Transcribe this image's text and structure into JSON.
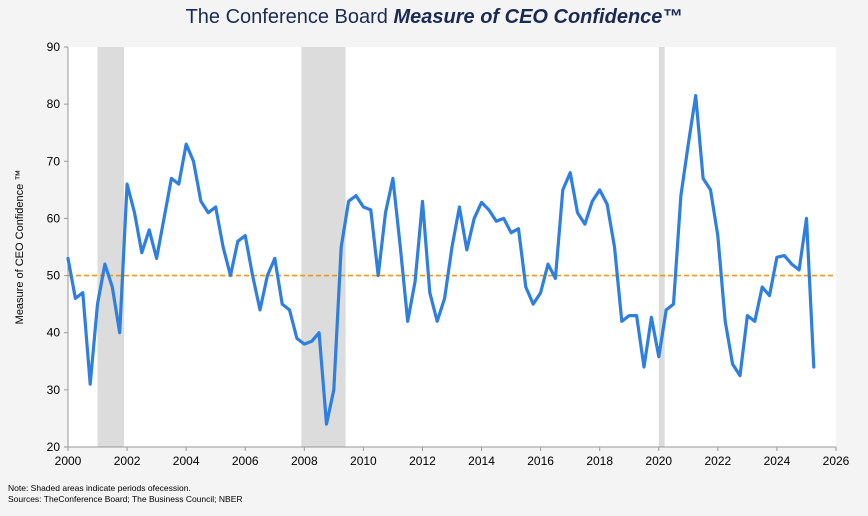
{
  "title": {
    "plain": "The Conference Board ",
    "emphasis": "Measure of CEO Confidence™"
  },
  "notes": {
    "line1": "Note: Shaded areas indicate periods ofecession.",
    "line2": "Sources: TheConference Board; The Business Council; NBER"
  },
  "colors": {
    "line": "#2e7fe0",
    "reference": "#e69a1a",
    "recession": "#dcdcdc",
    "title": "#1a2a55"
  },
  "chart_data": {
    "type": "line",
    "title": "The Conference Board Measure of CEO Confidence™",
    "xlabel": "",
    "ylabel": "Measure of CEO Confidence ™",
    "xlim": [
      2000,
      2026
    ],
    "ylim": [
      20,
      90
    ],
    "xticks": [
      "2000",
      "2002",
      "2004",
      "2006",
      "2008",
      "2010",
      "2012",
      "2014",
      "2016",
      "2018",
      "2020",
      "2022",
      "2024",
      "2026"
    ],
    "yticks": [
      "20",
      "30",
      "40",
      "50",
      "60",
      "70",
      "80",
      "90"
    ],
    "reference_line": 50,
    "recessions": [
      [
        2001.0,
        2001.9
      ],
      [
        2007.9,
        2009.4
      ],
      [
        2020.0,
        2020.2
      ]
    ],
    "series": [
      {
        "name": "Measure of CEO Confidence",
        "x": [
          2000.0,
          2000.25,
          2000.5,
          2000.75,
          2001.0,
          2001.25,
          2001.5,
          2001.75,
          2002.0,
          2002.25,
          2002.5,
          2002.75,
          2003.0,
          2003.25,
          2003.5,
          2003.75,
          2004.0,
          2004.25,
          2004.5,
          2004.75,
          2005.0,
          2005.25,
          2005.5,
          2005.75,
          2006.0,
          2006.25,
          2006.5,
          2006.75,
          2007.0,
          2007.25,
          2007.5,
          2007.75,
          2008.0,
          2008.25,
          2008.5,
          2008.75,
          2009.0,
          2009.25,
          2009.5,
          2009.75,
          2010.0,
          2010.25,
          2010.5,
          2010.75,
          2011.0,
          2011.25,
          2011.5,
          2011.75,
          2012.0,
          2012.25,
          2012.5,
          2012.75,
          2013.0,
          2013.25,
          2013.5,
          2013.75,
          2014.0,
          2014.25,
          2014.5,
          2014.75,
          2015.0,
          2015.25,
          2015.5,
          2015.75,
          2016.0,
          2016.25,
          2016.5,
          2016.75,
          2017.0,
          2017.25,
          2017.5,
          2017.75,
          2018.0,
          2018.25,
          2018.5,
          2018.75,
          2019.0,
          2019.25,
          2019.5,
          2019.75,
          2020.0,
          2020.25,
          2020.5,
          2020.75,
          2021.0,
          2021.25,
          2021.5,
          2021.75,
          2022.0,
          2022.25,
          2022.5,
          2022.75,
          2023.0,
          2023.25,
          2023.5,
          2023.75,
          2024.0,
          2024.25,
          2024.5,
          2024.75,
          2025.0,
          2025.25
        ],
        "values": [
          53,
          46,
          47,
          31,
          45,
          52,
          48,
          40,
          66,
          61,
          54,
          58,
          53,
          60,
          67,
          66,
          73,
          70,
          63,
          61,
          62,
          55,
          50,
          56,
          57,
          50,
          44,
          50,
          53,
          45,
          44,
          39,
          38,
          38.5,
          40,
          24,
          30,
          55,
          63,
          64,
          62,
          61.5,
          50,
          61,
          67,
          55,
          42,
          49,
          63,
          47,
          42,
          46,
          55,
          62,
          54.5,
          60,
          62.8,
          61.5,
          59.5,
          60,
          57.5,
          58.2,
          48,
          45,
          47,
          52,
          49.5,
          65,
          68,
          61,
          59,
          63,
          65,
          62.5,
          55,
          42,
          43,
          43,
          34,
          42.7,
          35.8,
          44,
          45,
          64,
          73,
          81.5,
          67,
          65,
          57,
          42,
          34.5,
          32.5,
          43,
          42,
          48,
          46.5,
          53.2,
          53.5,
          52,
          51,
          60,
          34
        ]
      }
    ]
  }
}
